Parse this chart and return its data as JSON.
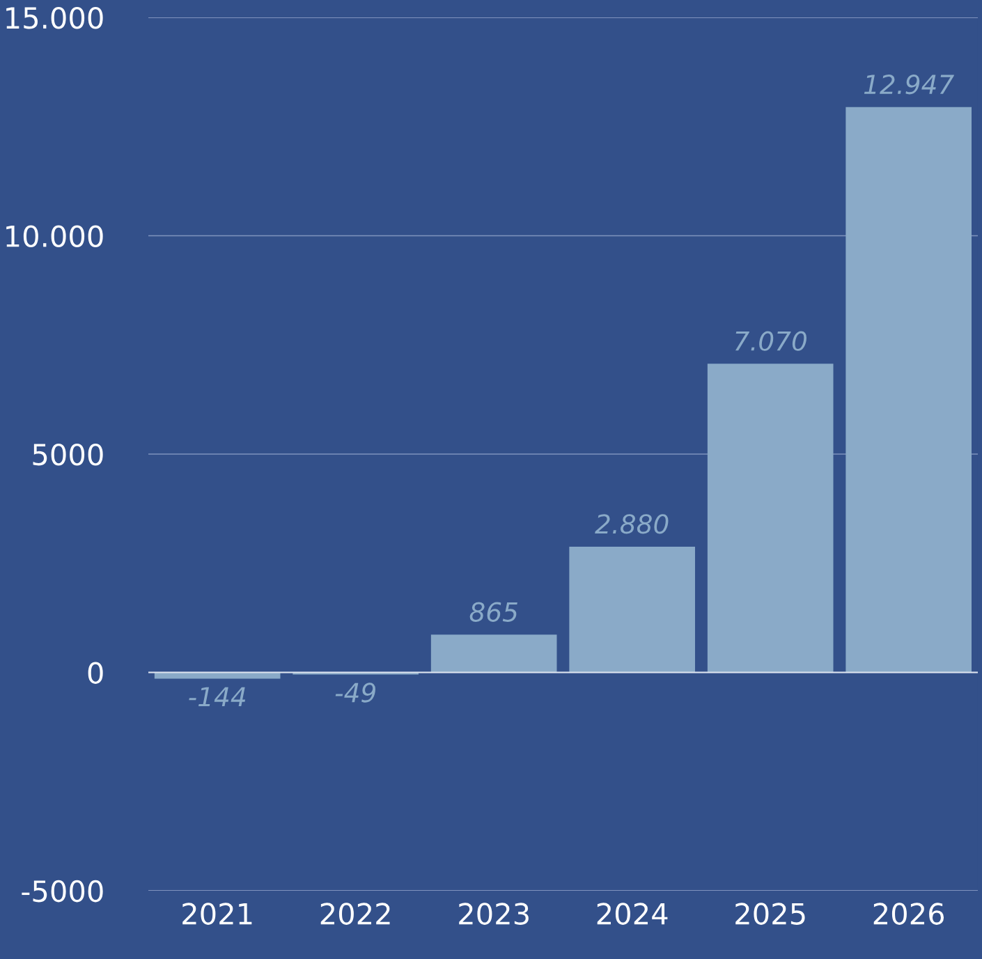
{
  "chart_data": {
    "type": "bar",
    "categories": [
      "2021",
      "2022",
      "2023",
      "2024",
      "2025",
      "2026"
    ],
    "values": [
      -144,
      -49,
      865,
      2880,
      7070,
      12947
    ],
    "value_labels": [
      "-144",
      "-49",
      "865",
      "2.880",
      "7.070",
      "12.947"
    ],
    "color": "#8aaac8",
    "ylim": [
      -5000,
      15000
    ],
    "yticks": [
      {
        "value": 15000,
        "label": "15.000"
      },
      {
        "value": 10000,
        "label": "10.000"
      },
      5000,
      0,
      -5000
    ],
    "grid": "y"
  }
}
